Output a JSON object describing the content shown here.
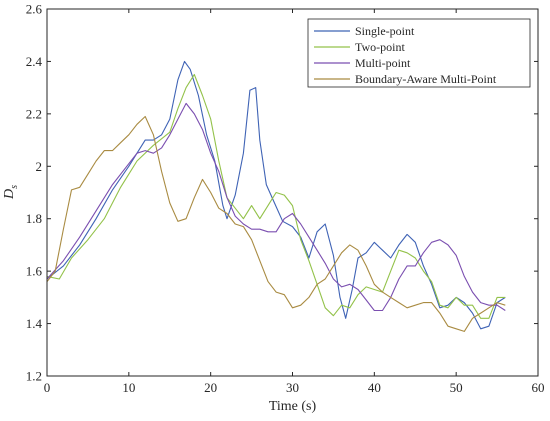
{
  "chart_data": {
    "type": "line",
    "xlabel": "Time (s)",
    "ylabel": "D",
    "ylabel_sub": "s",
    "xlim": [
      0,
      60
    ],
    "ylim": [
      1.2,
      2.6
    ],
    "xticks": [
      "0",
      "10",
      "20",
      "30",
      "40",
      "50",
      "60"
    ],
    "yticks": [
      "1.2",
      "1.4",
      "1.6",
      "1.8",
      "2",
      "2.2",
      "2.4",
      "2.6"
    ],
    "grid": false,
    "legend_position": "top-right",
    "series": [
      {
        "name": "Single-point",
        "color": "#3f63b5",
        "x": [
          0,
          2,
          4,
          6,
          8,
          10,
          11,
          12,
          13,
          14,
          15,
          16,
          16.8,
          17.5,
          18.5,
          19.5,
          20.5,
          21.5,
          22,
          23,
          24,
          24.8,
          25.5,
          26,
          26.8,
          27.8,
          28.8,
          30,
          31,
          32,
          33,
          34,
          35,
          35.8,
          36.5,
          37.3,
          38,
          39,
          40,
          41,
          42,
          43,
          44,
          45,
          46,
          47,
          48,
          49,
          50,
          51,
          52,
          53,
          54,
          55,
          56
        ],
        "y": [
          1.57,
          1.62,
          1.7,
          1.8,
          1.91,
          2.0,
          2.05,
          2.1,
          2.1,
          2.12,
          2.18,
          2.33,
          2.4,
          2.37,
          2.27,
          2.12,
          2.02,
          1.85,
          1.8,
          1.89,
          2.05,
          2.29,
          2.3,
          2.1,
          1.93,
          1.86,
          1.79,
          1.77,
          1.73,
          1.65,
          1.75,
          1.78,
          1.66,
          1.5,
          1.42,
          1.53,
          1.65,
          1.67,
          1.71,
          1.68,
          1.65,
          1.7,
          1.74,
          1.71,
          1.62,
          1.55,
          1.46,
          1.47,
          1.5,
          1.48,
          1.44,
          1.38,
          1.39,
          1.48,
          1.5
        ]
      },
      {
        "name": "Two-point",
        "color": "#93c24a",
        "x": [
          0,
          1.5,
          3,
          5,
          7,
          9,
          11,
          13,
          15,
          16,
          17,
          18,
          19,
          20,
          21,
          22,
          23,
          24,
          25,
          26,
          27,
          28,
          29,
          30,
          31,
          32,
          33,
          34,
          35,
          36,
          37,
          38,
          39,
          40,
          41,
          42,
          43,
          44,
          45,
          46,
          47,
          48,
          49,
          50,
          51,
          52,
          53,
          54,
          55,
          56
        ],
        "y": [
          1.58,
          1.57,
          1.65,
          1.72,
          1.8,
          1.92,
          2.02,
          2.08,
          2.13,
          2.22,
          2.3,
          2.35,
          2.27,
          2.18,
          2.02,
          1.88,
          1.84,
          1.8,
          1.85,
          1.8,
          1.85,
          1.9,
          1.89,
          1.85,
          1.72,
          1.64,
          1.55,
          1.46,
          1.43,
          1.47,
          1.46,
          1.51,
          1.54,
          1.53,
          1.52,
          1.6,
          1.68,
          1.67,
          1.65,
          1.6,
          1.56,
          1.47,
          1.46,
          1.5,
          1.47,
          1.47,
          1.42,
          1.42,
          1.5,
          1.5
        ]
      },
      {
        "name": "Multi-point",
        "color": "#7b4fb0",
        "x": [
          0,
          2,
          4,
          6,
          8,
          10,
          11,
          12,
          13,
          14,
          15,
          16,
          17,
          18,
          19,
          20,
          21,
          22,
          23,
          24,
          25,
          26,
          27,
          28,
          29,
          30,
          31,
          32,
          33,
          34,
          35,
          36,
          37,
          38,
          39,
          40,
          41,
          42,
          43,
          44,
          45,
          46,
          47,
          48,
          49,
          50,
          51,
          52,
          53,
          54,
          55,
          56
        ],
        "y": [
          1.57,
          1.64,
          1.73,
          1.83,
          1.93,
          2.01,
          2.05,
          2.06,
          2.05,
          2.07,
          2.12,
          2.18,
          2.24,
          2.2,
          2.14,
          2.05,
          1.98,
          1.88,
          1.81,
          1.78,
          1.76,
          1.76,
          1.75,
          1.75,
          1.8,
          1.82,
          1.78,
          1.73,
          1.68,
          1.63,
          1.57,
          1.54,
          1.55,
          1.53,
          1.49,
          1.45,
          1.45,
          1.5,
          1.57,
          1.62,
          1.62,
          1.67,
          1.71,
          1.72,
          1.7,
          1.66,
          1.58,
          1.52,
          1.48,
          1.47,
          1.47,
          1.45
        ]
      },
      {
        "name": "Boundary-Aware Multi-Point",
        "color": "#a98b42",
        "x": [
          0,
          1,
          2,
          3,
          4,
          5,
          6,
          7,
          8,
          9,
          10,
          11,
          12,
          13,
          14,
          15,
          16,
          17,
          18,
          19,
          20,
          21,
          22,
          23,
          24,
          25,
          26,
          27,
          28,
          29,
          30,
          31,
          32,
          33,
          34,
          35,
          36,
          37,
          38,
          39,
          40,
          41,
          42,
          43,
          44,
          45,
          46,
          47,
          48,
          49,
          50,
          51,
          52,
          53,
          54,
          55,
          56
        ],
        "y": [
          1.56,
          1.6,
          1.76,
          1.91,
          1.92,
          1.97,
          2.02,
          2.06,
          2.06,
          2.09,
          2.12,
          2.16,
          2.19,
          2.12,
          1.98,
          1.86,
          1.79,
          1.8,
          1.88,
          1.95,
          1.9,
          1.84,
          1.82,
          1.78,
          1.77,
          1.72,
          1.64,
          1.56,
          1.52,
          1.51,
          1.46,
          1.47,
          1.5,
          1.55,
          1.57,
          1.62,
          1.67,
          1.7,
          1.68,
          1.62,
          1.55,
          1.52,
          1.5,
          1.48,
          1.46,
          1.47,
          1.48,
          1.48,
          1.44,
          1.39,
          1.38,
          1.37,
          1.42,
          1.44,
          1.46,
          1.48,
          1.47
        ]
      }
    ]
  }
}
